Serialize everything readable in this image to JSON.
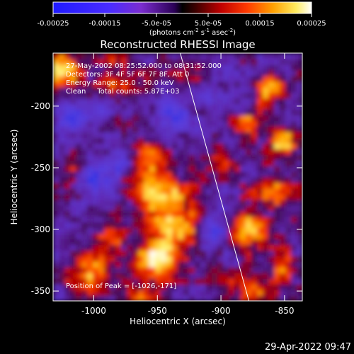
{
  "colorbar": {
    "ticks": [
      "-0.00025",
      "-0.00015",
      "-5.0e-05",
      "5.0e-05",
      "0.00015",
      "0.00025"
    ],
    "tick_values": [
      -0.00025,
      -0.00015,
      -5e-05,
      5e-05,
      0.00015,
      0.00025
    ],
    "range": [
      -0.00025,
      0.00025
    ],
    "units_prefix": "(photons cm",
    "units_exp1": "-2",
    "units_mid": " s",
    "units_exp2": "-1",
    "units_suffix": " asec",
    "units_exp3": "-2",
    "units_close": ")"
  },
  "annotations": {
    "time_range": "27-May-2002 08:25:52.000 to 08:31:52.000",
    "detectors": "Detectors: 3F 4F 5F 6F 7F 8F, Att 0",
    "energy": "Energy Range: 25.0 - 50.0 keV",
    "clean": "Clean     Total counts: 5.87E+03",
    "peak": "Position of Peak = [-1026,-171]"
  },
  "footer": {
    "timestamp": "29-Apr-2022 09:47"
  },
  "chart_data": {
    "type": "heatmap",
    "title": "Reconstructed RHESSI Image",
    "xlabel": "Heliocentric X (arcsec)",
    "ylabel": "Heliocentric Y (arcsec)",
    "xlim": [
      -1032,
      -836
    ],
    "ylim": [
      -358,
      -157
    ],
    "x_ticks": [
      -1000,
      -950,
      -900,
      -850
    ],
    "y_ticks": [
      -200,
      -250,
      -300,
      -350
    ],
    "x_tick_labels": [
      "-1000",
      "-950",
      "-900",
      "-850"
    ],
    "y_tick_labels": [
      "-200",
      "-250",
      "-300",
      "-350"
    ],
    "peak_position": [
      -1026,
      -171
    ],
    "limb_line": [
      [
        -932,
        -157
      ],
      [
        -878,
        -358
      ]
    ],
    "grid": false
  }
}
